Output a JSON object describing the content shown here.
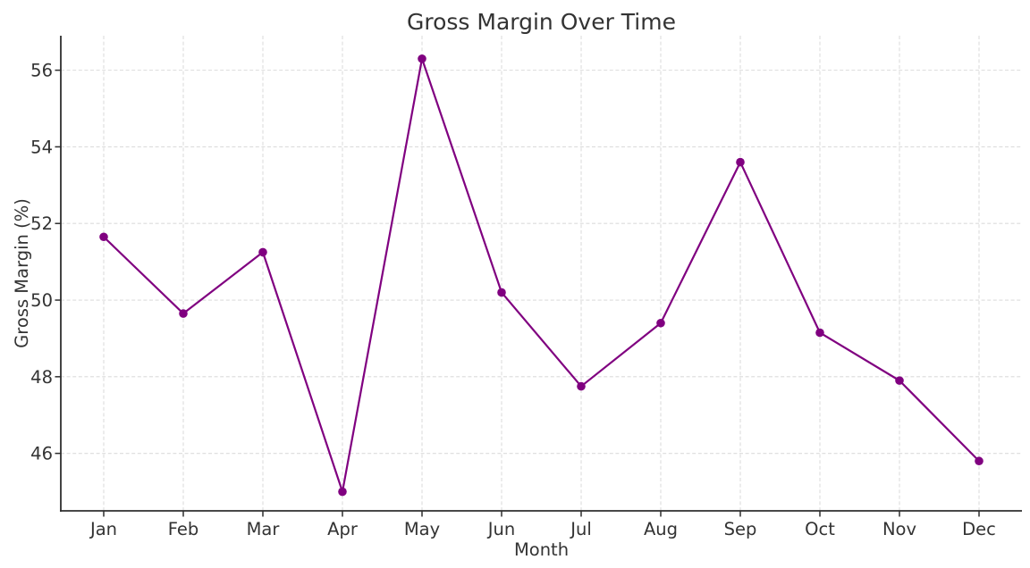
{
  "chart_data": {
    "type": "line",
    "title": "Gross Margin Over Time",
    "xlabel": "Month",
    "ylabel": "Gross Margin (%)",
    "categories": [
      "Jan",
      "Feb",
      "Mar",
      "Apr",
      "May",
      "Jun",
      "Jul",
      "Aug",
      "Sep",
      "Oct",
      "Nov",
      "Dec"
    ],
    "values": [
      51.65,
      49.65,
      51.25,
      45.0,
      56.3,
      50.2,
      47.75,
      49.4,
      53.6,
      49.15,
      47.9,
      45.8
    ],
    "yticks": [
      46,
      48,
      50,
      52,
      54,
      56
    ],
    "ylim": [
      44.5,
      56.9
    ],
    "grid": true,
    "grid_style": "dashed",
    "legend": "none",
    "line_color": "#800080",
    "marker": "circle",
    "grid_color": "#dcdcdc",
    "spine_color": "#2e2e2e",
    "text_color": "#333333",
    "background": "#ffffff"
  }
}
